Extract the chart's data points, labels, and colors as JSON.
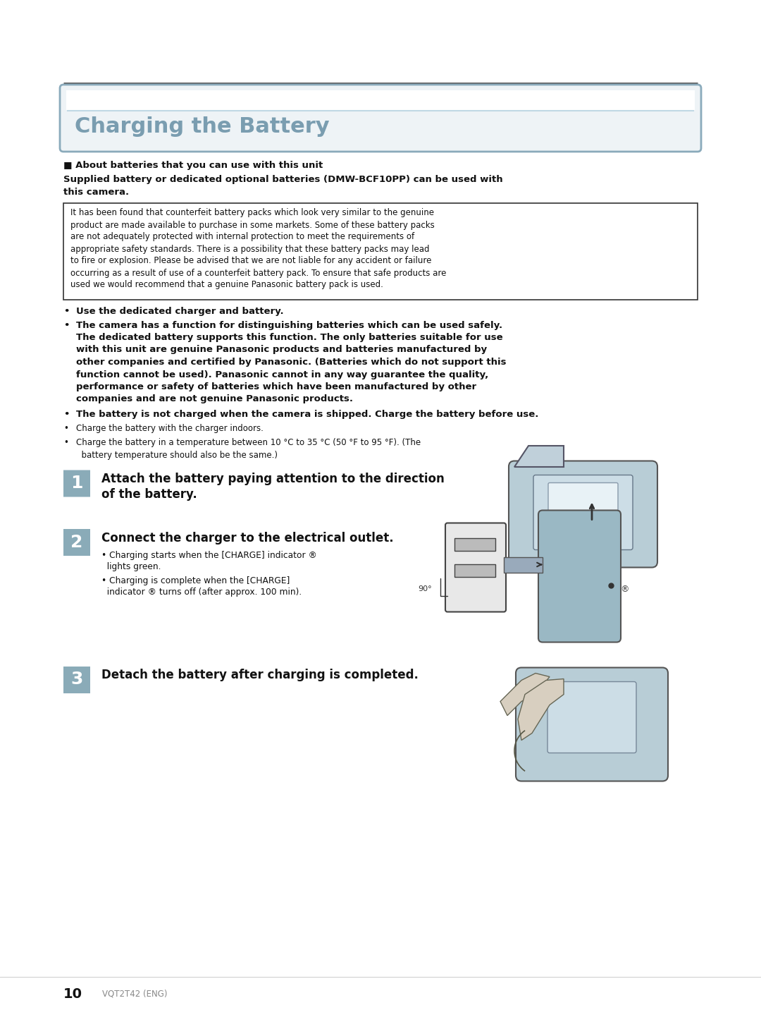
{
  "bg_color": "#ffffff",
  "title": "Charging the Battery",
  "title_color": "#7a9db0",
  "title_box_bg": "#eef3f6",
  "title_box_border": "#8aaabb",
  "title_inner_line_color": "#c0d8e4",
  "about_header": "■ About batteries that you can use with this unit",
  "about_bold_line1": "Supplied battery or dedicated optional batteries (DMW-BCF10PP) can be used with",
  "about_bold_line2": "this camera.",
  "warning_text_lines": [
    "It has been found that counterfeit battery packs which look very similar to the genuine",
    "product are made available to purchase in some markets. Some of these battery packs",
    "are not adequately protected with internal protection to meet the requirements of",
    "appropriate safety standards. There is a possibility that these battery packs may lead",
    "to fire or explosion. Please be advised that we are not liable for any accident or failure",
    "occurring as a result of use of a counterfeit battery pack. To ensure that safe products are",
    "used we would recommend that a genuine Panasonic battery pack is used."
  ],
  "bullet1": "Use the dedicated charger and battery.",
  "bullet2_lines": [
    "The camera has a function for distinguishing batteries which can be used safely.",
    "The dedicated battery supports this function. The only batteries suitable for use",
    "with this unit are genuine Panasonic products and batteries manufactured by",
    "other companies and certified by Panasonic. (Batteries which do not support this",
    "function cannot be used). Panasonic cannot in any way guarantee the quality,",
    "performance or safety of batteries which have been manufactured by other",
    "companies and are not genuine Panasonic products."
  ],
  "bullet3": "The battery is not charged when the camera is shipped. Charge the battery before use.",
  "bullet4": "Charge the battery with the charger indoors.",
  "bullet5_line1": "Charge the battery in a temperature between 10 °C to 35 °C (50 °F to 95 °F). (The",
  "bullet5_line2": "  battery temperature should also be the same.)",
  "step_bg": "#8aabb8",
  "step_fg": "#ffffff",
  "step1_label": "1",
  "step1_line1": "Attach the battery paying attention to the direction",
  "step1_line2": "of the battery.",
  "step2_label": "2",
  "step2_head": "Connect the charger to the electrical outlet.",
  "step2_sub1_line1": "Charging starts when the [CHARGE] indicator ®",
  "step2_sub1_line2": "  lights green.",
  "step2_sub2_line1": "Charging is complete when the [CHARGE]",
  "step2_sub2_line2": "  indicator ® turns off (after approx. 100 min).",
  "step3_label": "3",
  "step3_text": "Detach the battery after charging is completed.",
  "footer_num": "10",
  "footer_code": "VQT2T42 (ENG)",
  "text_color": "#111111",
  "top_line_color": "#555555",
  "gray_color": "#888888",
  "charger_fill": "#b8cdd6",
  "charger_dark": "#7a9aaa",
  "outlet_fill": "#e8e8e8",
  "device_fill": "#9ab8c4"
}
